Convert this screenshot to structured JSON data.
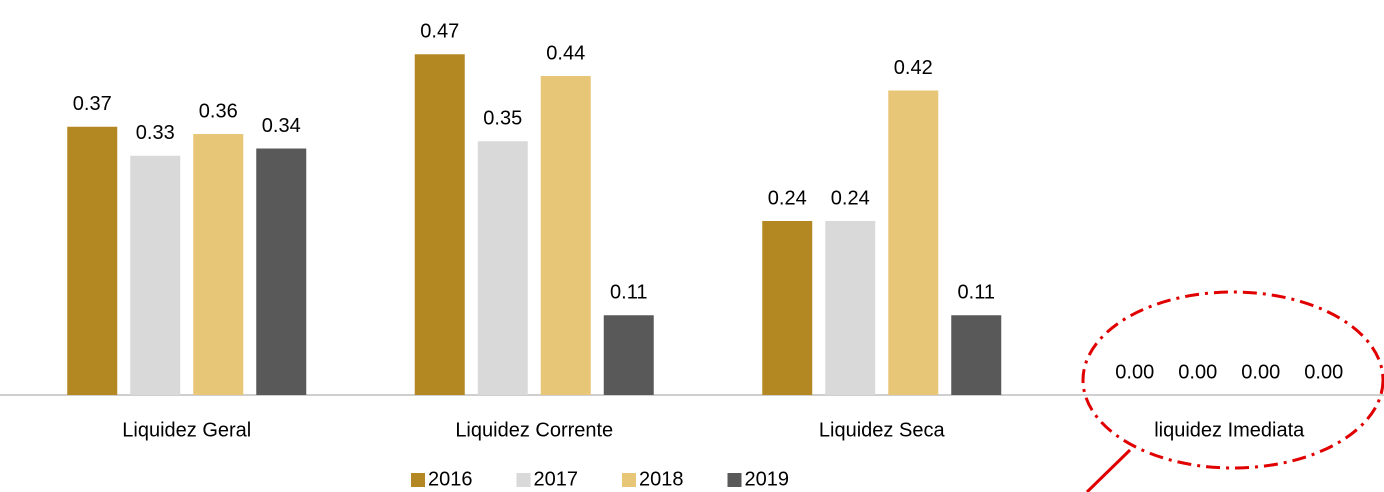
{
  "chart_data": {
    "type": "bar",
    "categories": [
      "Liquidez Geral",
      "Liquidez Corrente",
      "Liquidez Seca",
      "liquidez Imediata"
    ],
    "series": [
      {
        "name": "2016",
        "color": "#b38822",
        "values": [
          0.37,
          0.47,
          0.24,
          0
        ],
        "value_labels": [
          "0.37",
          "0.47",
          "0.24",
          "0.00"
        ]
      },
      {
        "name": "2017",
        "color": "#d9d9d9",
        "values": [
          0.33,
          0.35,
          0.24,
          0
        ],
        "value_labels": [
          "0.33",
          "0.35",
          "0.24",
          "0.00"
        ]
      },
      {
        "name": "2018",
        "color": "#e8c677",
        "values": [
          0.36,
          0.44,
          0.42,
          0
        ],
        "value_labels": [
          "0.36",
          "0.44",
          "0.42",
          "0.00"
        ]
      },
      {
        "name": "2019",
        "color": "#595959",
        "values": [
          0.34,
          0.11,
          0.11,
          0
        ],
        "value_labels": [
          "0.34",
          "0.11",
          "0.11",
          "0.00"
        ]
      }
    ],
    "ylim": [
      0,
      0.5
    ],
    "legend": "bottom"
  }
}
